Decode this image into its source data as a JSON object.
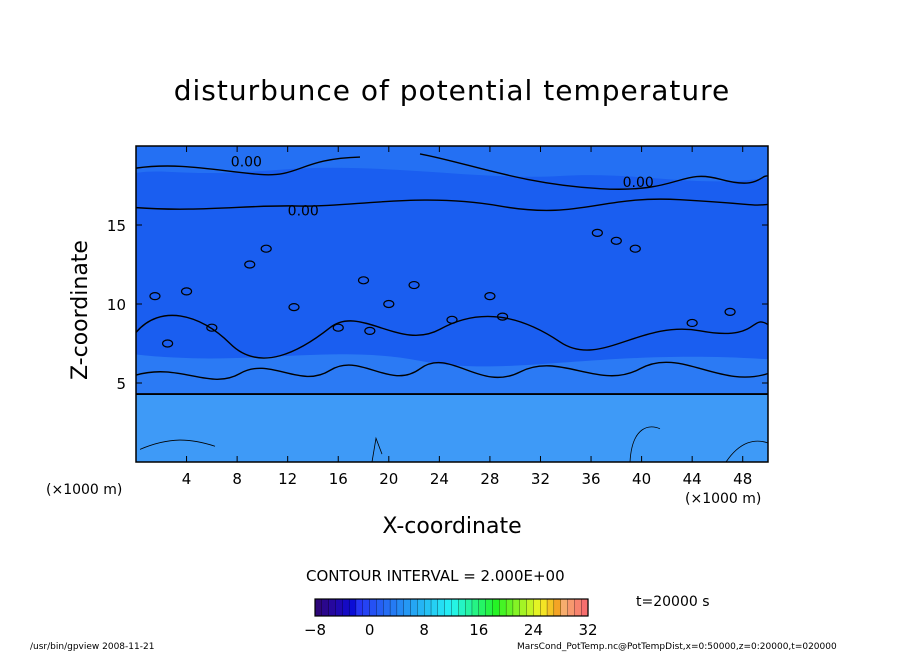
{
  "chart_data": {
    "type": "heatmap",
    "title": "disturbunce of potential temperature",
    "xlabel": "X-coordinate",
    "ylabel": "Z-coordinate",
    "x_unit": "(×1000 m)",
    "xlim": [
      0,
      50
    ],
    "ylim": [
      0,
      20
    ],
    "x_ticks": [
      4,
      8,
      12,
      16,
      20,
      24,
      28,
      32,
      36,
      40,
      44,
      48
    ],
    "y_ticks": [
      5,
      10,
      15
    ],
    "contour_labels": [
      "0.00",
      "0.00",
      "0.00"
    ],
    "contour_interval": "CONTOUR INTERVAL = 2.000E+00",
    "colorbar": {
      "min": -8,
      "max": 32,
      "tick_labels": [
        "−8",
        "0",
        "8",
        "16",
        "24",
        "32"
      ],
      "tick_values": [
        -8,
        0,
        8,
        16,
        24,
        32
      ]
    },
    "time": "t=20000 s",
    "colors": {
      "negative_level": "#1a5ef0",
      "zero_level": "#2f7ff5",
      "lower_level": "#3e9af7",
      "contour": "#000000"
    }
  },
  "footer": {
    "left": "/usr/bin/gpview   2008-11-21",
    "right": "MarsCond_PotTemp.nc@PotTempDist,x=0:50000,z=0:20000,t=020000"
  }
}
